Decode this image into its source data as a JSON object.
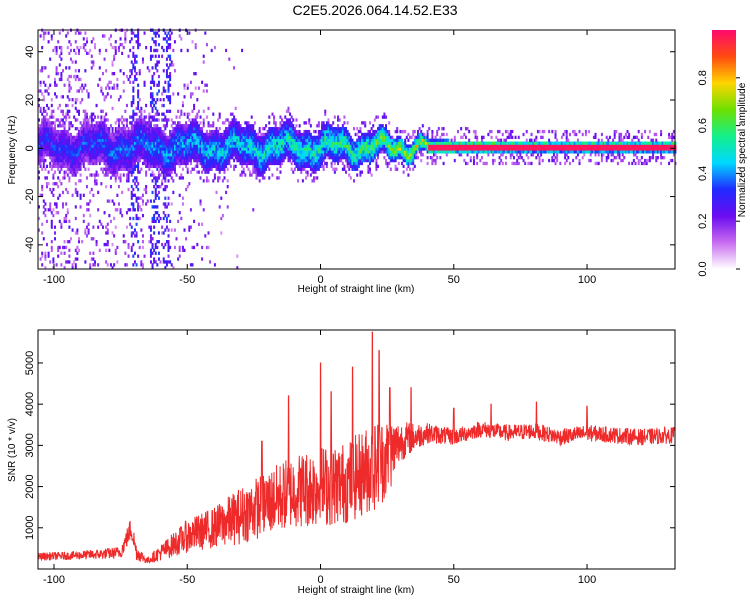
{
  "title": "C2E5.2026.064.14.52.E33",
  "colors": {
    "snr_line": "#ee2a2a"
  },
  "chart_data": [
    {
      "type": "heatmap",
      "xlabel": "Height of straight line (km)",
      "ylabel": "Frequency (Hz)",
      "xlim": [
        -106,
        133
      ],
      "ylim": [
        -50,
        49
      ],
      "x_ticks": [
        "-100",
        "-50",
        "0",
        "50",
        "100"
      ],
      "y_ticks": [
        "-40",
        "-20",
        "0",
        "20",
        "40"
      ],
      "colorbar": {
        "label": "Normalized spectral amplitude",
        "range": [
          0,
          1
        ],
        "ticks": [
          "0.0",
          "0.2",
          "0.4",
          "0.6",
          "0.8"
        ],
        "colormap": [
          "#ffffff",
          "#c86cf0",
          "#6a0cf0",
          "#1f2bff",
          "#00d8ff",
          "#13f08a",
          "#6ee000",
          "#ffd500",
          "#ff4a10",
          "#ff0a6e"
        ]
      },
      "ridge": {
        "center_hz": 0,
        "dominant_from_km": 40,
        "description_points": [
          {
            "x": -100,
            "half_width_hz": 8,
            "amp": 0.35
          },
          {
            "x": -70,
            "half_width_hz": 9,
            "amp": 0.4
          },
          {
            "x": -40,
            "half_width_hz": 8,
            "amp": 0.5
          },
          {
            "x": -10,
            "half_width_hz": 8,
            "amp": 0.55
          },
          {
            "x": 20,
            "half_width_hz": 6,
            "amp": 0.65
          },
          {
            "x": 40,
            "half_width_hz": 3,
            "amp": 0.8
          },
          {
            "x": 80,
            "half_width_hz": 2,
            "amp": 0.95
          },
          {
            "x": 133,
            "half_width_hz": 2,
            "amp": 0.95
          }
        ],
        "vertical_streaks_km": [
          -70,
          -63,
          -62,
          -58
        ]
      }
    },
    {
      "type": "line",
      "xlabel": "Height of straight line (km)",
      "ylabel": "SNR (10 * v/v)",
      "xlim": [
        -106,
        133
      ],
      "ylim": [
        0,
        5800
      ],
      "x_ticks": [
        "-100",
        "-50",
        "0",
        "50",
        "100"
      ],
      "y_ticks": [
        "1000",
        "2000",
        "3000",
        "4000",
        "5000"
      ],
      "series": [
        {
          "x": [
            -106,
            -95,
            -85,
            -75,
            -71,
            -69,
            -65,
            -60,
            -50,
            -40,
            -30,
            -20,
            -10,
            0,
            10,
            20,
            25,
            30,
            35,
            40,
            50,
            60,
            70,
            80,
            90,
            100,
            110,
            120,
            133
          ],
          "values": [
            300,
            320,
            350,
            400,
            1000,
            400,
            200,
            400,
            800,
            1000,
            1300,
            1600,
            1900,
            2000,
            2100,
            2500,
            2700,
            3100,
            3200,
            3300,
            3200,
            3400,
            3300,
            3350,
            3200,
            3300,
            3250,
            3200,
            3250
          ],
          "noise": [
            100,
            100,
            120,
            150,
            300,
            200,
            80,
            200,
            400,
            500,
            700,
            800,
            900,
            1000,
            1000,
            1100,
            1000,
            500,
            350,
            250,
            200,
            200,
            200,
            200,
            200,
            200,
            200,
            200,
            200
          ],
          "peaks": [
            {
              "x": -22,
              "y": 3100
            },
            {
              "x": -12,
              "y": 4200
            },
            {
              "x": 0,
              "y": 5000
            },
            {
              "x": 4,
              "y": 4300
            },
            {
              "x": 12,
              "y": 4900
            },
            {
              "x": 19.5,
              "y": 5750
            },
            {
              "x": 22,
              "y": 5300
            },
            {
              "x": 26,
              "y": 4400
            },
            {
              "x": 34,
              "y": 4400
            },
            {
              "x": 50,
              "y": 3900
            },
            {
              "x": 64,
              "y": 4000
            },
            {
              "x": 81,
              "y": 4050
            },
            {
              "x": 100,
              "y": 3950
            }
          ]
        }
      ]
    }
  ]
}
